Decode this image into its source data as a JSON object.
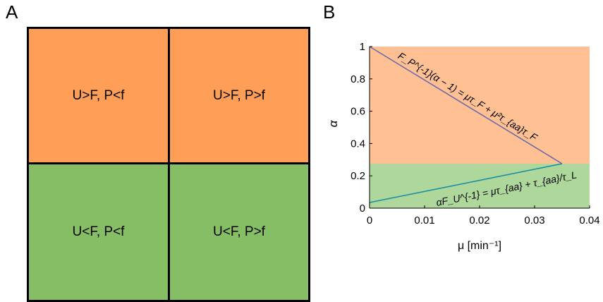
{
  "panel_a": {
    "label": "A",
    "quadrants": [
      {
        "id": "top-left",
        "text": "U>F, P<f",
        "color": "#FF9F57"
      },
      {
        "id": "top-right",
        "text": "U>F, P>f",
        "color": "#FF9F57"
      },
      {
        "id": "bottom-left",
        "text": "U<F, P<f",
        "color": "#85BE65"
      },
      {
        "id": "bottom-right",
        "text": "U<F, P>f",
        "color": "#85BE65"
      }
    ]
  },
  "panel_b": {
    "label": "B"
  },
  "chart_data": {
    "type": "line",
    "xlabel": "μ [min⁻¹]",
    "ylabel": "α",
    "xlim": [
      0,
      0.04
    ],
    "ylim": [
      0,
      1
    ],
    "xticks": [
      "0",
      "0.01",
      "0.02",
      "0.03",
      "0.04"
    ],
    "yticks": [
      "0",
      "0.2",
      "0.4",
      "0.6",
      "0.8",
      "1"
    ],
    "xtick_values": [
      0,
      0.01,
      0.02,
      0.03,
      0.04
    ],
    "ytick_values": [
      0,
      0.2,
      0.4,
      0.6,
      0.8,
      1
    ],
    "regions": [
      {
        "y_from": 0.275,
        "y_to": 1,
        "color": "#FFC093"
      },
      {
        "y_from": 0,
        "y_to": 0.275,
        "color": "#AED79C"
      }
    ],
    "series": [
      {
        "x": [
          0,
          0.035
        ],
        "y": [
          1,
          0.275
        ],
        "color": "#6F6AA8",
        "annotation": "F_P^{-1}(α − 1) = μτ_F + μ²τ_{aa}τ_F"
      },
      {
        "x": [
          0,
          0.035
        ],
        "y": [
          0.035,
          0.275
        ],
        "color": "#1B8FA0",
        "annotation": "αF_U^{-1} = μτ_{aa} + τ_{aa}/τ_L"
      }
    ]
  }
}
